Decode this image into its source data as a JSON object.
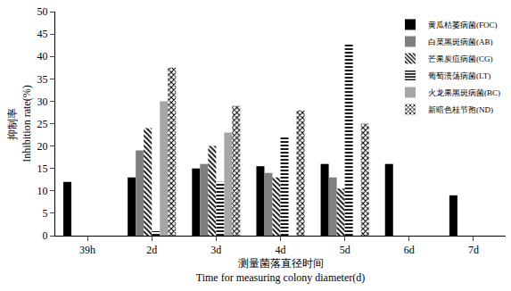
{
  "chart_data": {
    "type": "bar",
    "x_label": "测量菌落直径时间\nTime for measuring colony diameter(d)",
    "y_label": "抑制率\nInhibition rate(%)",
    "categories": [
      "39h",
      "2d",
      "3d",
      "4d",
      "5d",
      "6d",
      "7d"
    ],
    "series": [
      {
        "name": "黄瓜枯萎病菌(FOC)",
        "color": "#000000",
        "marker": "solid",
        "values": [
          12,
          13,
          15,
          15.5,
          16,
          16,
          9
        ]
      },
      {
        "name": "白菜黑斑病菌(AB)",
        "color": "#7f7f7f",
        "marker": "solid",
        "values": [
          null,
          19,
          16,
          14,
          13,
          null,
          null
        ]
      },
      {
        "name": "芒果炭疽病菌(CG)",
        "color": "#000000",
        "marker": "diagonal",
        "values": [
          null,
          24,
          20,
          13,
          10.5,
          null,
          null
        ]
      },
      {
        "name": "葡萄溃荡病菌(LT)",
        "color": "#000000",
        "marker": "horizontal",
        "values": [
          null,
          1,
          12,
          22,
          43,
          null,
          null
        ]
      },
      {
        "name": "火龙果黑斑病菌(BC)",
        "color": "#a6a6a6",
        "marker": "solid",
        "values": [
          null,
          30,
          23,
          null,
          null,
          null,
          null
        ]
      },
      {
        "name": "新暗色桂节孢(ND)",
        "color": "#000000",
        "marker": "crosshatch",
        "values": [
          null,
          37.5,
          29,
          28,
          25,
          null,
          null
        ]
      }
    ],
    "ylim": [
      0,
      50
    ],
    "yticks": [
      0,
      5,
      10,
      15,
      20,
      25,
      30,
      35,
      40,
      45,
      50
    ],
    "grid": false,
    "legend": "top right"
  }
}
